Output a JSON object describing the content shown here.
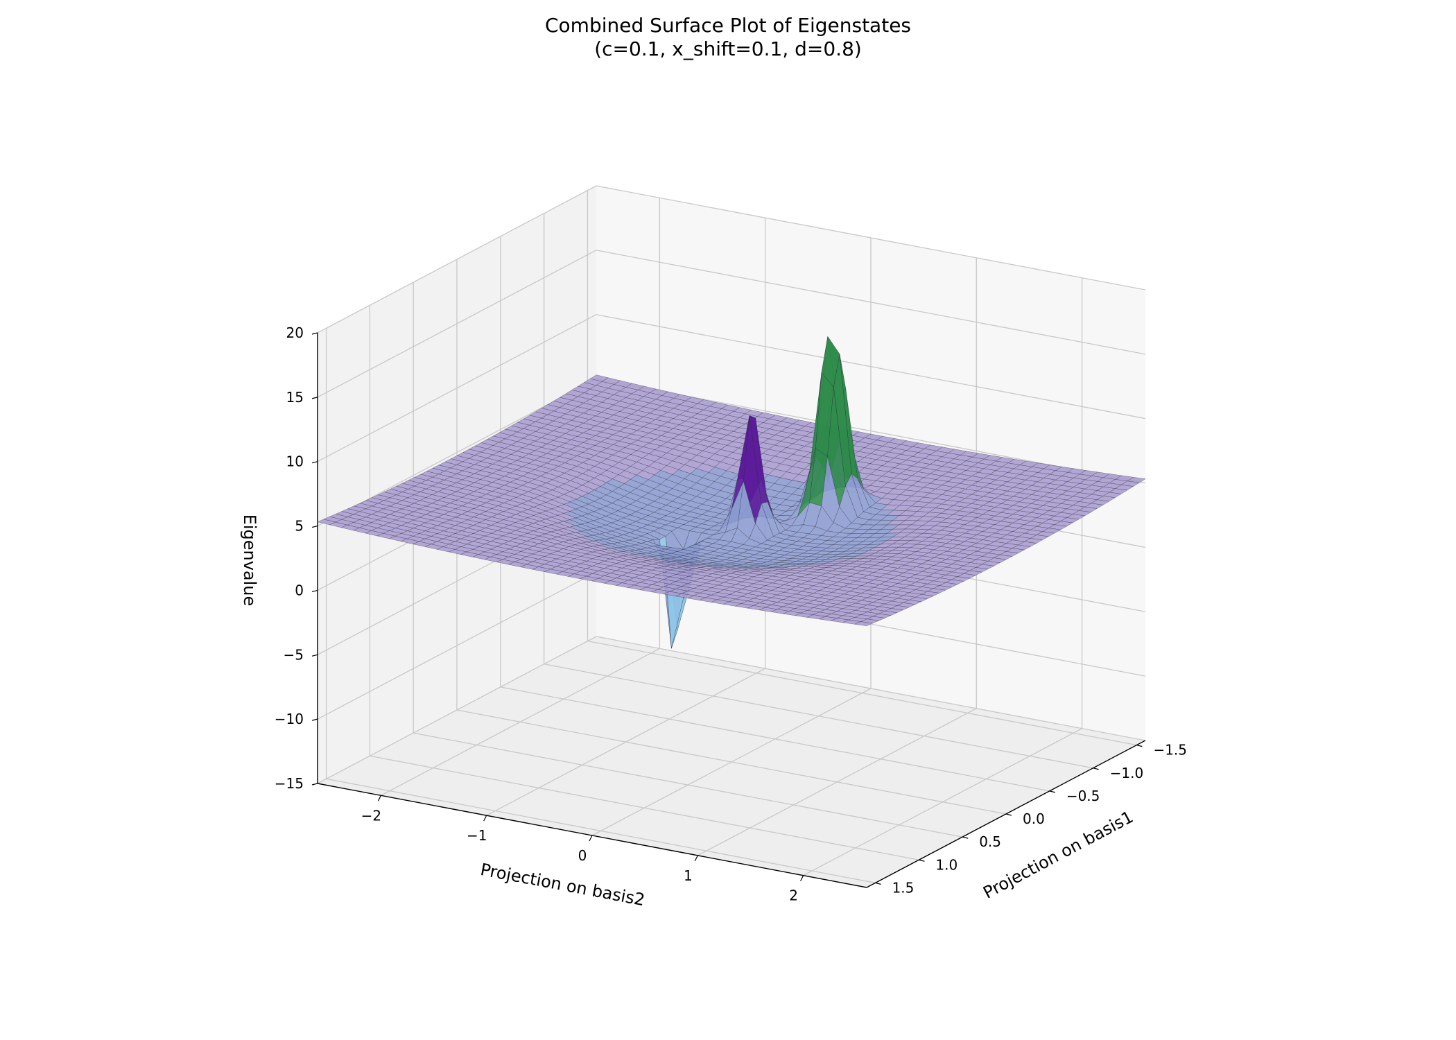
{
  "chart_data": {
    "type": "surface",
    "title": "Combined Surface Plot of Eigenstates",
    "subtitle": "(c=0.1, x_shift=0.1, d=0.8)",
    "xlabel": "Projection on basis2",
    "ylabel": "Projection on basis1",
    "zlabel": "Eigenvalue",
    "x_ticks": [
      "−2",
      "−1",
      "0",
      "1",
      "2"
    ],
    "x_tick_values": [
      -2,
      -1,
      0,
      1,
      2
    ],
    "y_ticks": [
      "−1.5",
      "−1.0",
      "−0.5",
      "0.0",
      "0.5",
      "1.0",
      "1.5"
    ],
    "y_tick_values": [
      -1.5,
      -1.0,
      -0.5,
      0.0,
      0.5,
      1.0,
      1.5
    ],
    "z_ticks": [
      "−15",
      "−10",
      "−5",
      "0",
      "5",
      "10",
      "15",
      "20"
    ],
    "z_tick_values": [
      -15,
      -10,
      -5,
      0,
      5,
      10,
      15,
      20
    ],
    "xlim": [
      -2.6,
      2.6
    ],
    "ylim": [
      -1.6,
      1.6
    ],
    "zlim": [
      -15,
      20
    ],
    "grid": true,
    "surfaces": [
      {
        "colormap": "Purples",
        "base_level": 4.2,
        "features": [
          {
            "type": "peak",
            "x": 0.1,
            "y": -0.1,
            "height": 10.0
          },
          {
            "type": "bowl",
            "radius": 1.0,
            "depth": -1.5
          }
        ]
      },
      {
        "colormap": "Greens",
        "base_level": 4.2,
        "features": [
          {
            "type": "peak",
            "x": 0.5,
            "y": -0.55,
            "height": 19.5
          }
        ]
      },
      {
        "colormap": "Blues",
        "base_level": 4.2,
        "features": [
          {
            "type": "well",
            "x": -0.3,
            "y": 0.25,
            "depth": -12.5
          }
        ]
      }
    ],
    "colors": {
      "purple_surface": "#a99bd0",
      "purple_peak": "#5b1a9a",
      "green_peak": "#2e8b4a",
      "blue_well": "#8ec5e6",
      "pane_left": "#f2f2f2",
      "pane_back": "#f7f7f7",
      "pane_floor": "#eeeeee",
      "grid": "#c8c8c8"
    }
  }
}
